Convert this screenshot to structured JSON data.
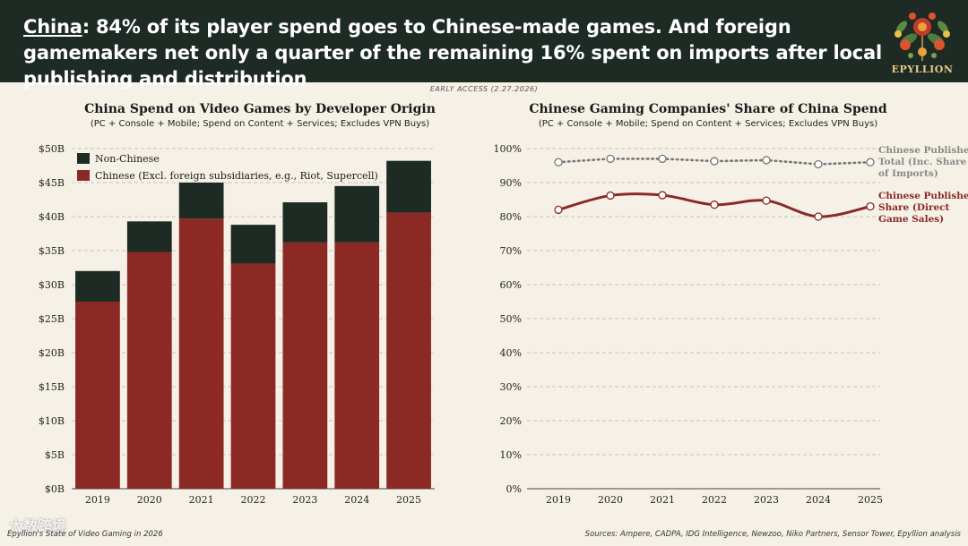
{
  "header": {
    "headline_lead": "China",
    "headline_rest": ": 84% of its player spend goes to Chinese-made games. And foreign gamemakers net only a quarter of the remaining 16% spent on imports after local publishing and distribution",
    "logo_text": "EPYLLION"
  },
  "early_access": "EARLY ACCESS (2.27.2026)",
  "footer": {
    "left": "Epyllion's State of Video Gaming in 2026",
    "right": "Sources: Ampere, CADPA, IDG Intelligence, Newzoo, Niko Partners, Sensor Tower, Epyllion analysis",
    "watermark": "大数跨境"
  },
  "colors": {
    "header_bg": "#1e2b24",
    "chinese": "#8b2a25",
    "non_chinese": "#1d2b24",
    "grey_line": "#777777",
    "background": "#f6f1e7"
  },
  "chart_data": [
    {
      "type": "bar",
      "stacked": true,
      "title": "China Spend on Video Games by Developer Origin",
      "subtitle": "(PC + Console + Mobile; Spend on Content + Services; Excludes VPN Buys)",
      "categories": [
        "2019",
        "2020",
        "2021",
        "2022",
        "2023",
        "2024",
        "2025"
      ],
      "series": [
        {
          "name": "Chinese (Excl. foreign subsidiaries, e.g., Riot, Supercell)",
          "color": "#8b2a25",
          "values": [
            27.5,
            34.8,
            39.7,
            33.1,
            36.2,
            36.2,
            40.6
          ]
        },
        {
          "name": "Non-Chinese",
          "color": "#1d2b24",
          "values": [
            4.5,
            4.5,
            5.3,
            5.7,
            5.9,
            8.3,
            7.6
          ]
        }
      ],
      "totals": [
        32.0,
        39.3,
        45.0,
        38.8,
        42.1,
        44.5,
        48.2
      ],
      "ylim": [
        0,
        50
      ],
      "yticks": [
        0,
        5,
        10,
        15,
        20,
        25,
        30,
        35,
        40,
        45,
        50
      ],
      "ytick_labels": [
        "$0B",
        "$5B",
        "$10B",
        "$15B",
        "$20B",
        "$25B",
        "$30B",
        "$35B",
        "$40B",
        "$45B",
        "$50B"
      ],
      "legend": [
        "Non-Chinese",
        "Chinese (Excl. foreign subsidiaries, e.g., Riot, Supercell)"
      ],
      "legend_position": "top-left",
      "grid": "horizontal dashed"
    },
    {
      "type": "line",
      "title": "Chinese Gaming Companies' Share of China Spend",
      "subtitle": "(PC + Console + Mobile; Spend on Content + Services; Excludes VPN Buys)",
      "x": [
        "2019",
        "2020",
        "2021",
        "2022",
        "2023",
        "2024",
        "2025"
      ],
      "series": [
        {
          "name": "Chinese Publisher Total (Inc. Share of Imports)",
          "label_lines": [
            "Chinese Publisher",
            "Total (Inc. Share",
            "of Imports)"
          ],
          "style": "dotted",
          "color": "#777777",
          "values": [
            96,
            97,
            97,
            96.3,
            96.6,
            95.4,
            96
          ]
        },
        {
          "name": "Chinese Publisher Share (Direct Game Sales)",
          "label_lines": [
            "Chinese Publisher",
            "Share (Direct",
            "Game Sales)"
          ],
          "style": "solid",
          "color": "#8b2a25",
          "values": [
            82,
            86.2,
            86.3,
            83.5,
            84.7,
            80,
            83
          ]
        }
      ],
      "ylim": [
        0,
        100
      ],
      "yticks": [
        0,
        10,
        20,
        30,
        40,
        50,
        60,
        70,
        80,
        90,
        100
      ],
      "ytick_labels": [
        "0%",
        "10%",
        "20%",
        "30%",
        "40%",
        "50%",
        "60%",
        "70%",
        "80%",
        "90%",
        "100%"
      ],
      "grid": "horizontal dashed"
    }
  ]
}
